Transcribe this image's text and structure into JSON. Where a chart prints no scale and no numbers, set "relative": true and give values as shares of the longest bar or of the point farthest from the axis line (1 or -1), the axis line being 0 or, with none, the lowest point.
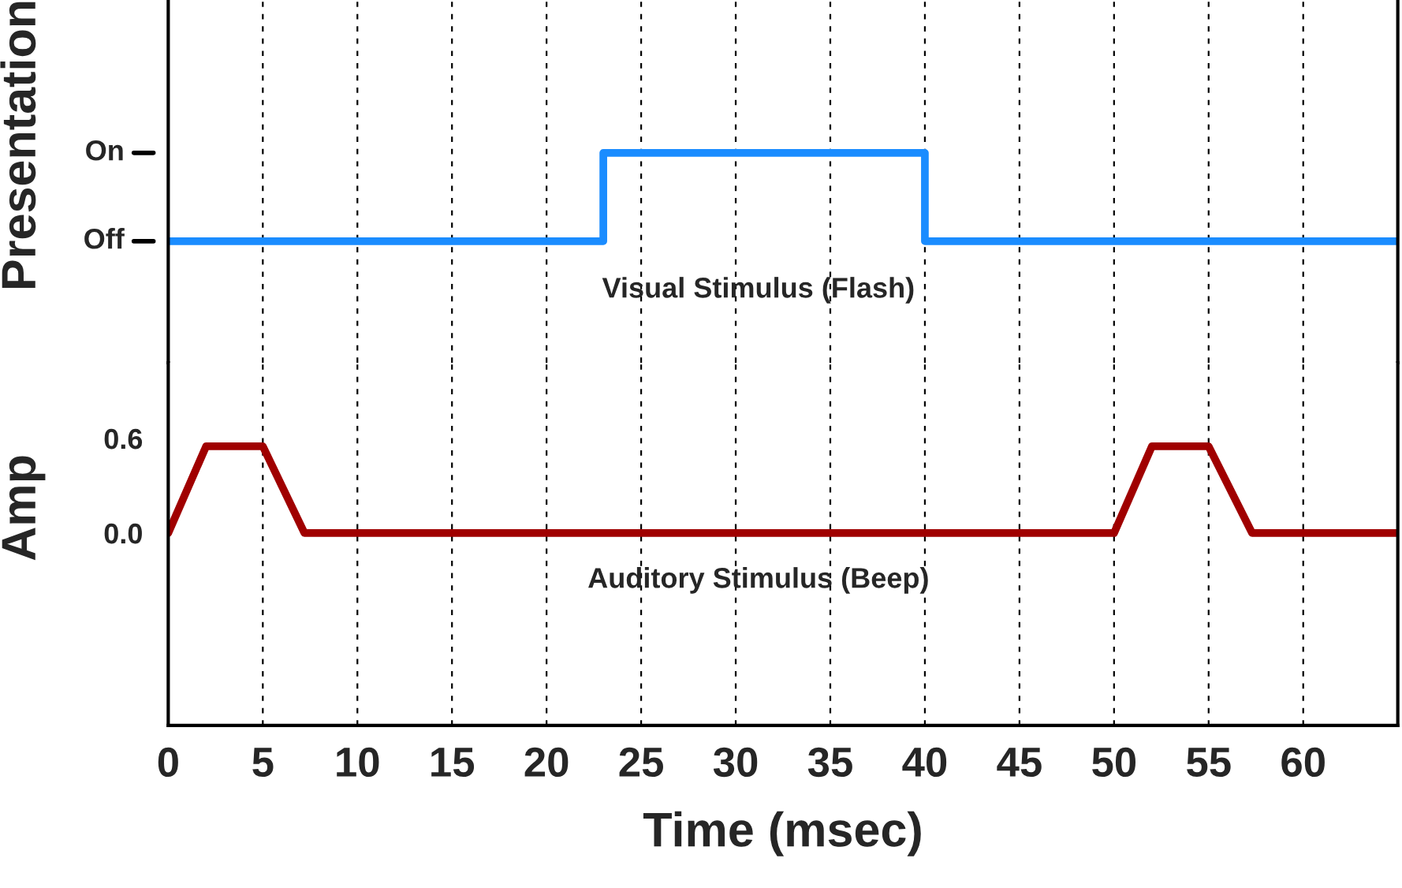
{
  "chart_data": [
    {
      "type": "step",
      "ylabel": "Presentation",
      "annotations": [
        "Visual Stimulus (Flash)",
        "On",
        "Off"
      ],
      "relative": true,
      "xlim": [
        0,
        65
      ],
      "xticks": [
        0,
        5,
        10,
        15,
        20,
        25,
        30,
        35,
        40,
        45,
        50,
        55,
        60
      ],
      "grid": "x",
      "tick_labels": false,
      "series": [
        {
          "color": "#1a8cff",
          "x": [
            0,
            23,
            40,
            65
          ],
          "values": [
            0,
            1,
            0,
            0
          ]
        }
      ]
    },
    {
      "type": "line",
      "xlabel": "Time (msec)",
      "ylabel": "Amp",
      "annotations": [
        "Auditory Stimulus (Beep)"
      ],
      "xlim": [
        0,
        65
      ],
      "xticks": [
        0,
        5,
        10,
        15,
        20,
        25,
        30,
        35,
        40,
        45,
        50,
        55,
        60
      ],
      "ylim": [
        -1.22,
        1.08
      ],
      "yticks": [
        {
          "value": 0,
          "label": "0.0"
        },
        {
          "value": 0.6,
          "label": "0.6"
        }
      ],
      "grid": "x",
      "series": [
        {
          "color": "#a00000",
          "x": [
            0,
            2,
            5,
            7.2,
            50,
            52,
            55,
            57.3,
            65
          ],
          "values": [
            0,
            0.55,
            0.55,
            0,
            0,
            0.55,
            0.55,
            0,
            0
          ]
        }
      ]
    }
  ]
}
